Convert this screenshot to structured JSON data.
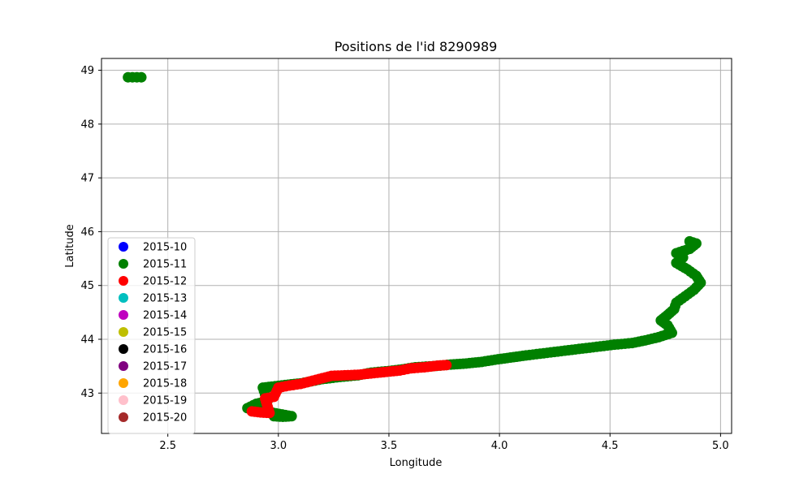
{
  "chart_data": {
    "type": "scatter",
    "title": "Positions de l'id 8290989",
    "xlabel": "Longitude",
    "ylabel": "Latitude",
    "xlim": [
      2.2,
      5.05
    ],
    "ylim": [
      42.25,
      49.22
    ],
    "xticks": [
      "2.5",
      "3.0",
      "3.5",
      "4.0",
      "4.5",
      "5.0"
    ],
    "yticks": [
      "43",
      "44",
      "45",
      "46",
      "47",
      "48",
      "49"
    ],
    "grid": true,
    "legend_position": "lower-left",
    "legend": [
      {
        "label": "2015-10",
        "color": "#0000ff"
      },
      {
        "label": "2015-11",
        "color": "#008000"
      },
      {
        "label": "2015-12",
        "color": "#ff0000"
      },
      {
        "label": "2015-13",
        "color": "#00bfbf"
      },
      {
        "label": "2015-14",
        "color": "#bf00bf"
      },
      {
        "label": "2015-15",
        "color": "#bfbf00"
      },
      {
        "label": "2015-16",
        "color": "#000000"
      },
      {
        "label": "2015-17",
        "color": "#800080"
      },
      {
        "label": "2015-18",
        "color": "#ffa500"
      },
      {
        "label": "2015-19",
        "color": "#ffc0cb"
      },
      {
        "label": "2015-20",
        "color": "#a52a2a"
      }
    ],
    "series": [
      {
        "name": "2015-11",
        "color": "#008000",
        "points": [
          [
            2.32,
            48.87
          ],
          [
            2.34,
            48.87
          ],
          [
            2.36,
            48.87
          ],
          [
            2.38,
            48.87
          ],
          [
            2.98,
            42.57
          ],
          [
            3.02,
            42.56
          ],
          [
            3.06,
            42.57
          ],
          [
            2.86,
            42.72
          ],
          [
            2.9,
            42.8
          ],
          [
            2.95,
            42.85
          ],
          [
            2.93,
            43.1
          ],
          [
            2.97,
            43.12
          ],
          [
            3.03,
            43.15
          ],
          [
            3.1,
            43.18
          ],
          [
            3.15,
            43.22
          ],
          [
            3.2,
            43.26
          ],
          [
            3.28,
            43.3
          ],
          [
            3.36,
            43.33
          ],
          [
            3.42,
            43.38
          ],
          [
            3.5,
            43.41
          ],
          [
            3.56,
            43.44
          ],
          [
            3.62,
            43.48
          ],
          [
            3.7,
            43.5
          ],
          [
            3.78,
            43.53
          ],
          [
            3.85,
            43.55
          ],
          [
            3.92,
            43.58
          ],
          [
            3.98,
            43.62
          ],
          [
            4.05,
            43.66
          ],
          [
            4.12,
            43.7
          ],
          [
            4.2,
            43.74
          ],
          [
            4.28,
            43.78
          ],
          [
            4.36,
            43.82
          ],
          [
            4.44,
            43.86
          ],
          [
            4.52,
            43.9
          ],
          [
            4.6,
            43.93
          ],
          [
            4.66,
            43.98
          ],
          [
            4.72,
            44.04
          ],
          [
            4.78,
            44.12
          ],
          [
            4.76,
            44.26
          ],
          [
            4.73,
            44.35
          ],
          [
            4.76,
            44.45
          ],
          [
            4.79,
            44.56
          ],
          [
            4.8,
            44.68
          ],
          [
            4.84,
            44.8
          ],
          [
            4.88,
            44.92
          ],
          [
            4.91,
            45.05
          ],
          [
            4.89,
            45.18
          ],
          [
            4.85,
            45.3
          ],
          [
            4.8,
            45.42
          ],
          [
            4.83,
            45.52
          ],
          [
            4.8,
            45.6
          ],
          [
            4.86,
            45.68
          ],
          [
            4.89,
            45.78
          ],
          [
            4.86,
            45.82
          ]
        ]
      },
      {
        "name": "2015-12",
        "color": "#ff0000",
        "points": [
          [
            2.88,
            42.66
          ],
          [
            2.92,
            42.64
          ],
          [
            2.96,
            42.63
          ],
          [
            2.94,
            42.9
          ],
          [
            2.98,
            42.93
          ],
          [
            3.0,
            43.1
          ],
          [
            3.05,
            43.14
          ],
          [
            3.1,
            43.17
          ],
          [
            3.24,
            43.32
          ],
          [
            3.3,
            43.33
          ],
          [
            3.36,
            43.34
          ],
          [
            3.55,
            43.42
          ],
          [
            3.6,
            43.46
          ],
          [
            3.66,
            43.48
          ],
          [
            3.72,
            43.51
          ],
          [
            3.76,
            43.52
          ]
        ]
      }
    ]
  }
}
